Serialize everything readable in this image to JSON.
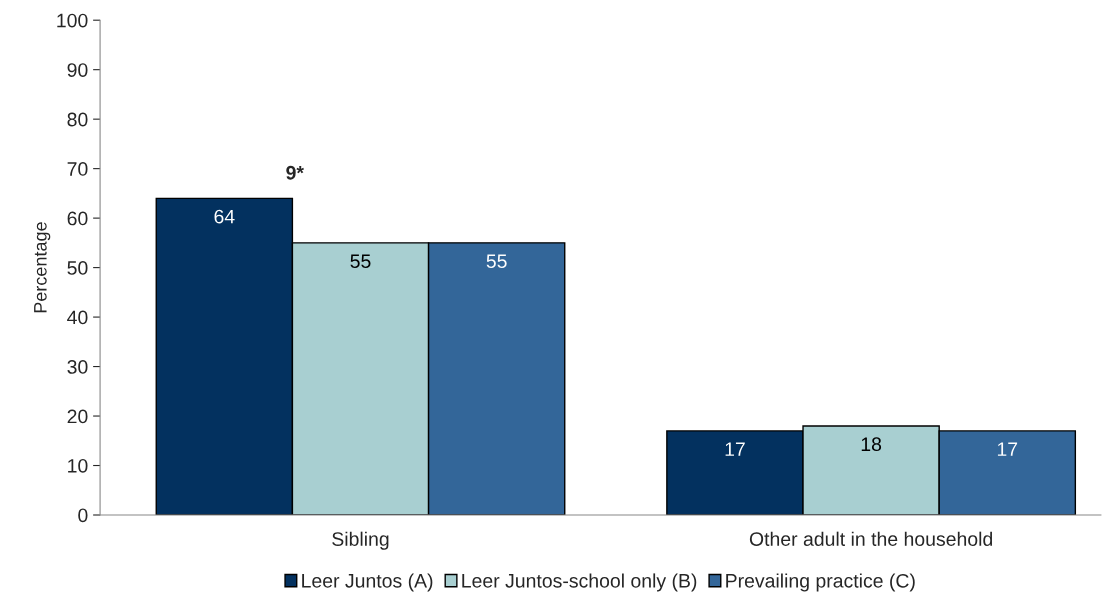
{
  "chart_data": {
    "type": "bar",
    "ylabel": "Percentage",
    "categories": [
      "Sibling",
      "Other adult in the household"
    ],
    "series": [
      {
        "name": "Leer Juntos (A)",
        "color": "#03315f",
        "values": [
          64,
          17
        ]
      },
      {
        "name": "Leer Juntos-school only (B)",
        "color": "#a8cfd1",
        "values": [
          55,
          18
        ]
      },
      {
        "name": "Prevailing practice (C)",
        "color": "#336699",
        "values": [
          55,
          17
        ]
      }
    ],
    "ylim": [
      0,
      100
    ],
    "yticks": [
      0,
      10,
      20,
      30,
      40,
      50,
      60,
      70,
      80,
      90,
      100
    ],
    "data_labels": true,
    "grid": false,
    "legend": "bottom",
    "annotations": [
      "9*"
    ]
  }
}
